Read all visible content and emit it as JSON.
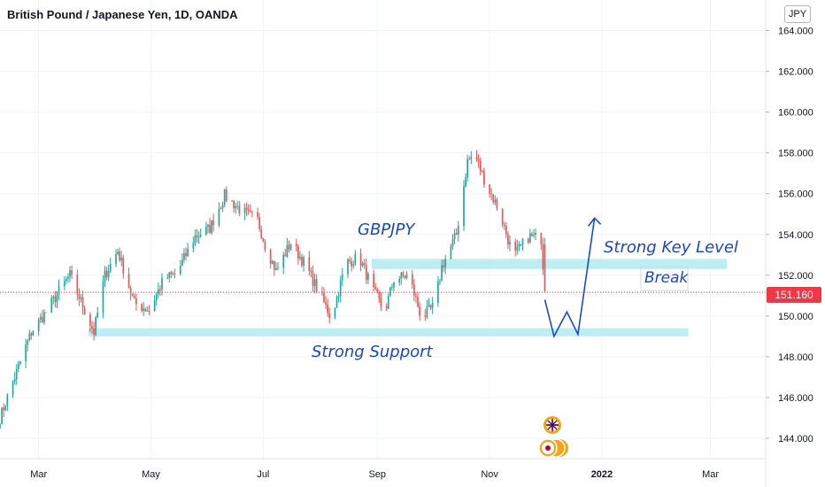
{
  "header": {
    "title": "British Pound / Japanese Yen, 1D, OANDA",
    "currency": "JPY"
  },
  "last_price": "151.160",
  "colors": {
    "up": "#26a69a",
    "down": "#ef5350",
    "zone": "#b2ebf2",
    "annotation": "#1c47c4",
    "price_line": "#f23645"
  },
  "chart_data": {
    "type": "candlestick",
    "title": "British Pound / Japanese Yen, 1D, OANDA",
    "symbol": "GBPJPY",
    "interval": "1D",
    "y_unit": "JPY",
    "ylim": [
      143.0,
      165.5
    ],
    "y_ticks": [
      "164.000",
      "162.000",
      "160.000",
      "158.000",
      "156.000",
      "154.000",
      "152.000",
      "150.000",
      "148.000",
      "146.000",
      "144.000"
    ],
    "x_ticks": [
      "Mar",
      "May",
      "Jul",
      "Sep",
      "Nov",
      "2022",
      "Mar"
    ],
    "x_range": [
      "2021-02-08",
      "2022-03-31"
    ],
    "close_path": [
      [
        "2021-02-08",
        145.0
      ],
      [
        "2021-02-20",
        148.0
      ],
      [
        "2021-02-25",
        149.2
      ],
      [
        "2021-03-05",
        150.2
      ],
      [
        "2021-03-12",
        151.2
      ],
      [
        "2021-03-18",
        152.0
      ],
      [
        "2021-03-25",
        150.5
      ],
      [
        "2021-03-31",
        149.2
      ],
      [
        "2021-04-06",
        152.0
      ],
      [
        "2021-04-13",
        153.2
      ],
      [
        "2021-04-22",
        150.6
      ],
      [
        "2021-04-30",
        150.3
      ],
      [
        "2021-05-08",
        151.8
      ],
      [
        "2021-05-15",
        152.1
      ],
      [
        "2021-05-25",
        153.9
      ],
      [
        "2021-06-02",
        154.3
      ],
      [
        "2021-06-10",
        155.9
      ],
      [
        "2021-06-20",
        155.1
      ],
      [
        "2021-06-28",
        154.7
      ],
      [
        "2021-07-02",
        153.5
      ],
      [
        "2021-07-08",
        152.2
      ],
      [
        "2021-07-16",
        153.6
      ],
      [
        "2021-07-24",
        152.5
      ],
      [
        "2021-07-31",
        151.2
      ],
      [
        "2021-08-07",
        149.9
      ],
      [
        "2021-08-15",
        152.6
      ],
      [
        "2021-08-22",
        152.9
      ],
      [
        "2021-08-30",
        151.2
      ],
      [
        "2021-09-05",
        150.2
      ],
      [
        "2021-09-10",
        151.8
      ],
      [
        "2021-09-18",
        152.0
      ],
      [
        "2021-09-25",
        149.9
      ],
      [
        "2021-10-02",
        150.5
      ],
      [
        "2021-10-06",
        152.4
      ],
      [
        "2021-10-14",
        154.0
      ],
      [
        "2021-10-20",
        157.6
      ],
      [
        "2021-10-24",
        157.9
      ],
      [
        "2021-10-30",
        156.5
      ],
      [
        "2021-11-06",
        155.2
      ],
      [
        "2021-11-14",
        152.9
      ],
      [
        "2021-11-22",
        153.9
      ],
      [
        "2021-11-29",
        153.8
      ],
      [
        "2021-12-01",
        151.2
      ]
    ],
    "zones": [
      {
        "from": "2021-03-28",
        "to": "2022-02-17",
        "low": 149.0,
        "high": 149.4
      },
      {
        "from": "2021-08-29",
        "to": "2022-03-10",
        "low": 152.3,
        "high": 152.8
      }
    ],
    "projection": [
      [
        "2021-12-01",
        150.8
      ],
      [
        "2021-12-06",
        149.0
      ],
      [
        "2021-12-13",
        150.2
      ],
      [
        "2021-12-19",
        149.1
      ],
      [
        "2021-12-28",
        154.8
      ]
    ],
    "annotations": [
      "GBPJPY",
      "Strong Key Level",
      "Break",
      "Strong Support"
    ]
  }
}
